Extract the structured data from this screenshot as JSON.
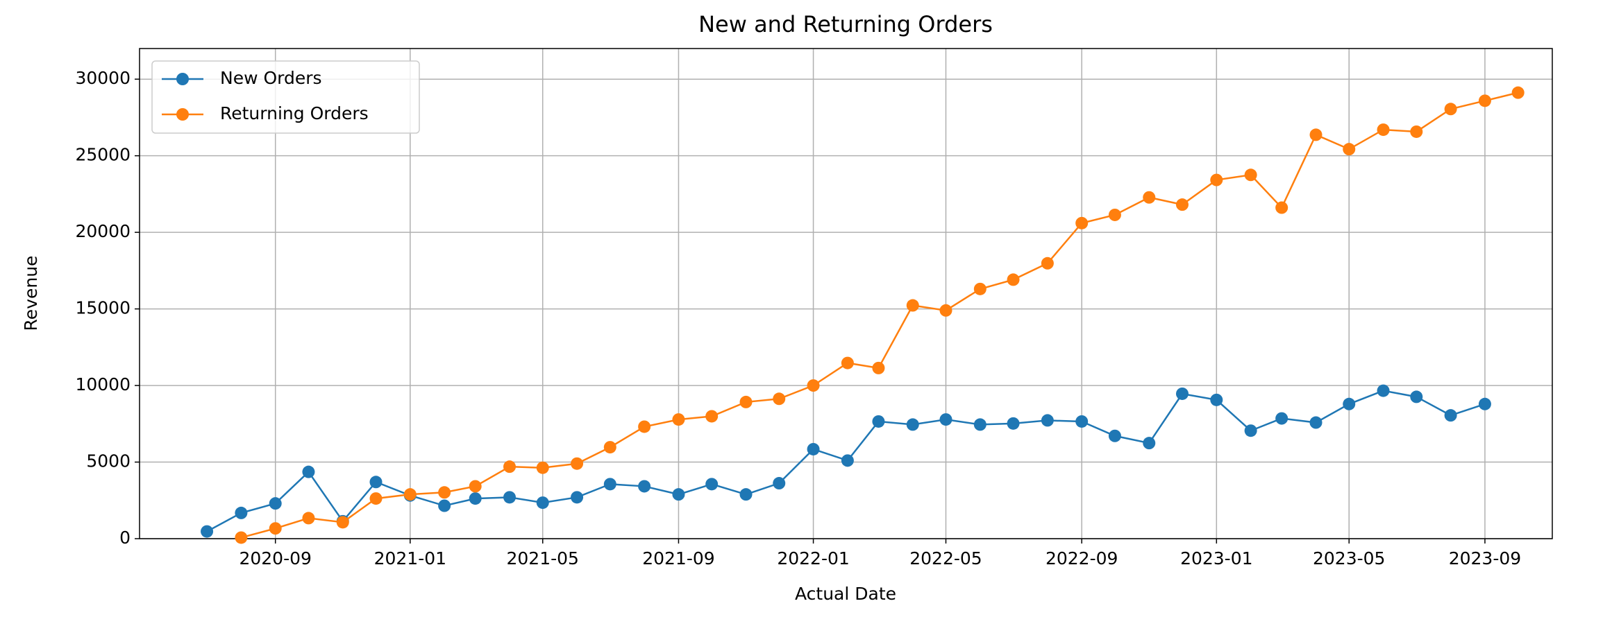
{
  "chart_data": {
    "type": "line",
    "title": "New and Returning Orders",
    "x_label": "Actual Date",
    "y_label": "Revenue",
    "x": [
      "2020-07",
      "2020-08",
      "2020-09",
      "2020-10",
      "2020-11",
      "2020-12",
      "2021-01",
      "2021-02",
      "2021-03",
      "2021-04",
      "2021-05",
      "2021-06",
      "2021-07",
      "2021-08",
      "2021-09",
      "2021-10",
      "2021-11",
      "2021-12",
      "2022-01",
      "2022-02",
      "2022-03",
      "2022-04",
      "2022-05",
      "2022-06",
      "2022-07",
      "2022-08",
      "2022-09",
      "2022-10",
      "2022-11",
      "2022-12",
      "2023-01",
      "2023-02",
      "2023-03",
      "2023-04",
      "2023-05",
      "2023-06",
      "2023-07",
      "2023-08",
      "2023-09",
      "2023-10"
    ],
    "series": [
      {
        "name": "New Orders",
        "color": "#1f77b4",
        "values": [
          470,
          1680,
          2300,
          4360,
          1140,
          3700,
          2820,
          2150,
          2620,
          2700,
          2350,
          2700,
          3560,
          3420,
          2890,
          3560,
          2890,
          3620,
          5840,
          5100,
          7650,
          7450,
          7780,
          7450,
          7520,
          7720,
          7650,
          6710,
          6240,
          9460,
          9060,
          7050,
          7850,
          7580,
          8790,
          9660,
          9260,
          8050,
          8790,
          null
        ]
      },
      {
        "name": "Returning Orders",
        "color": "#ff7f0e",
        "values": [
          null,
          70,
          670,
          1340,
          1070,
          2620,
          2890,
          3020,
          3420,
          4700,
          4630,
          4900,
          5970,
          7310,
          7780,
          7990,
          8920,
          9130,
          10000,
          11470,
          11140,
          15230,
          14900,
          16300,
          16910,
          17980,
          20600,
          21140,
          22280,
          21810,
          23420,
          23750,
          21610,
          26370,
          25430,
          26700,
          26570,
          28050,
          28590,
          29120
        ]
      }
    ],
    "xlim": [
      "2020-05",
      "2023-11"
    ],
    "xticks": [
      "2020-09",
      "2021-01",
      "2021-05",
      "2021-09",
      "2022-01",
      "2022-05",
      "2022-09",
      "2023-01",
      "2023-05",
      "2023-09"
    ],
    "ylim": [
      0,
      32000
    ],
    "yticks": [
      0,
      5000,
      10000,
      15000,
      20000,
      25000,
      30000
    ],
    "grid": true,
    "legend": "upper left"
  }
}
